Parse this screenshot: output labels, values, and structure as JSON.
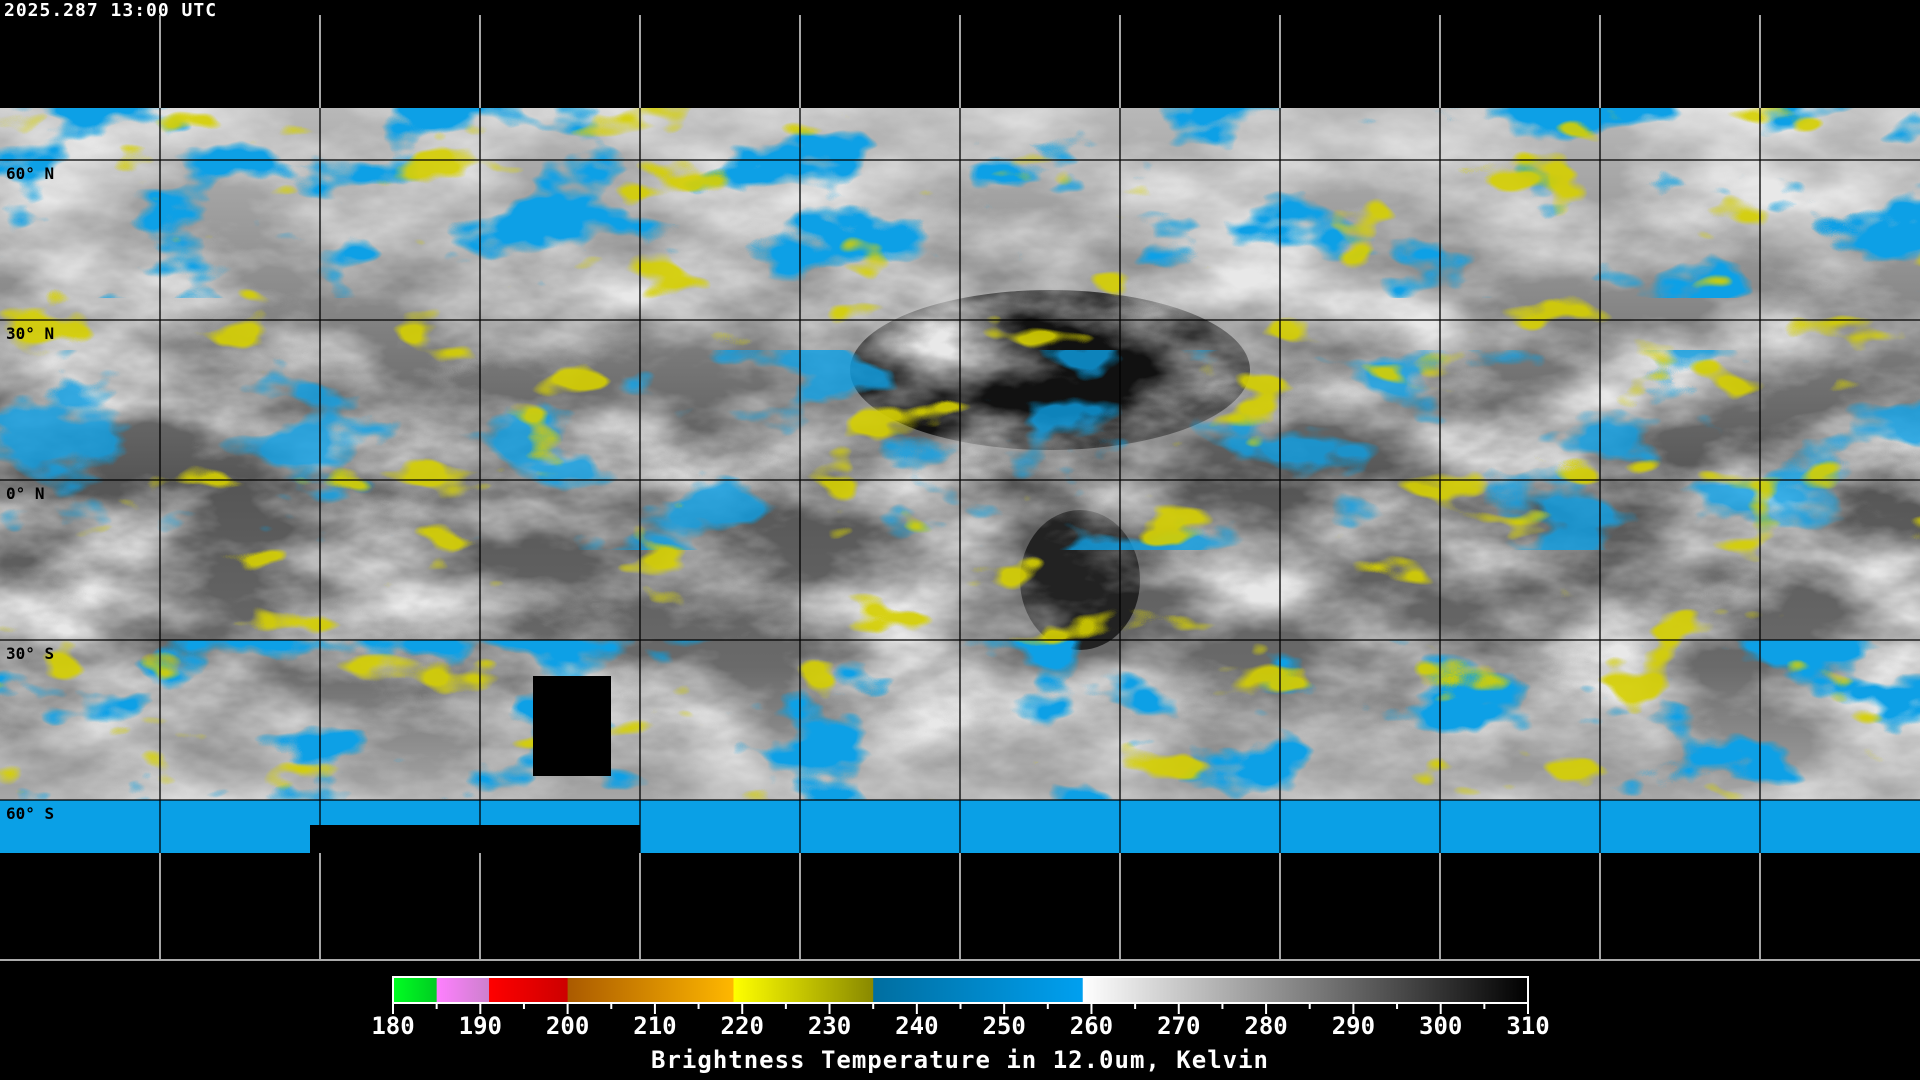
{
  "timestamp": "2025.287 13:00 UTC",
  "map": {
    "projection": "equirectangular",
    "lon_range": [
      -180,
      180
    ],
    "lat_range": [
      -90,
      90
    ],
    "grid_spacing_deg": 30,
    "lat_labels": [
      "60° N",
      "30° N",
      "0° N",
      "30° S",
      "60° S"
    ],
    "lat_values": [
      60,
      30,
      0,
      -30,
      -60
    ],
    "background_color": "#000000",
    "coastline_color_over_data": "#000000",
    "coastline_color_over_space": "#ffffff",
    "gridline_color_over_data": "#000000",
    "gridline_color_over_space": "#ffffff"
  },
  "colorbar": {
    "min": 180,
    "max": 310,
    "tick_labels": [
      "180",
      "190",
      "200",
      "210",
      "220",
      "230",
      "240",
      "250",
      "260",
      "270",
      "280",
      "290",
      "300",
      "310"
    ],
    "title": "Brightness Temperature in 12.0um, Kelvin",
    "segments": [
      {
        "from": 180,
        "to": 185,
        "colors": [
          "#00ff22",
          "#00cc22"
        ]
      },
      {
        "from": 185,
        "to": 191,
        "colors": [
          "#ff80ff",
          "#cc80cc"
        ]
      },
      {
        "from": 191,
        "to": 200,
        "colors": [
          "#ff0000",
          "#cc0000"
        ]
      },
      {
        "from": 200,
        "to": 219,
        "colors": [
          "#aa5a00",
          "#ffb800"
        ]
      },
      {
        "from": 219,
        "to": 235,
        "colors": [
          "#ffff00",
          "#888800"
        ]
      },
      {
        "from": 235,
        "to": 259,
        "colors": [
          "#006ea0",
          "#00a0f0"
        ]
      },
      {
        "from": 259,
        "to": 310,
        "colors": [
          "#ffffff",
          "#000000"
        ]
      }
    ]
  }
}
